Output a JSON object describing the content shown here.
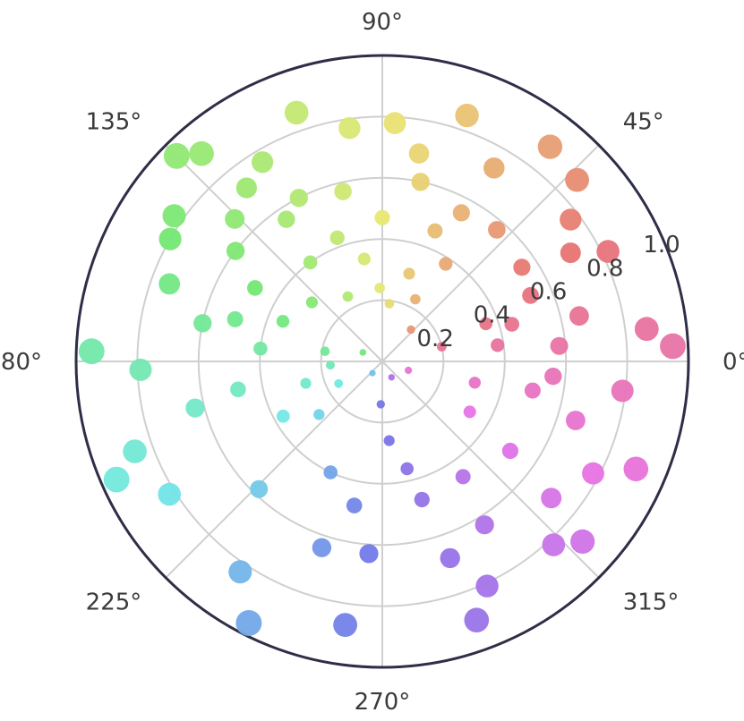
{
  "chart_data": {
    "type": "scatter",
    "coordinate_system": "polar",
    "title": "",
    "theta_unit": "degrees",
    "r_range": [
      0,
      1.0
    ],
    "r_ticks": [
      0.2,
      0.4,
      0.6,
      0.8,
      1.0
    ],
    "r_tick_labels": [
      "0.2",
      "0.4",
      "0.6",
      "0.8",
      "1.0"
    ],
    "theta_ticks": [
      0,
      45,
      90,
      135,
      180,
      225,
      270,
      315
    ],
    "theta_tick_labels": [
      "0°",
      "45°",
      "90°",
      "135°",
      "180°",
      "225°",
      "270°",
      "315°"
    ],
    "grid": true,
    "color_encoding": "hue by angle (hsv)",
    "size_encoding": "marker area grows with radius",
    "points": [
      {
        "theta": 3,
        "r": 0.95
      },
      {
        "theta": 7,
        "r": 0.87
      },
      {
        "theta": 13,
        "r": 0.66
      },
      {
        "theta": 8,
        "r": 0.38
      },
      {
        "theta": 14,
        "r": 0.2
      },
      {
        "theta": 5,
        "r": 0.58
      },
      {
        "theta": 24,
        "r": 0.53
      },
      {
        "theta": 20,
        "r": 0.36
      },
      {
        "theta": 30,
        "r": 0.71
      },
      {
        "theta": 37,
        "r": 0.77
      },
      {
        "theta": 43,
        "r": 0.87
      },
      {
        "theta": 34,
        "r": 0.55
      },
      {
        "theta": 49,
        "r": 0.57
      },
      {
        "theta": 52,
        "r": 0.89
      },
      {
        "theta": 62,
        "r": 0.55
      },
      {
        "theta": 60,
        "r": 0.73
      },
      {
        "theta": 71,
        "r": 0.85
      },
      {
        "theta": 78,
        "r": 0.6
      },
      {
        "theta": 73,
        "r": 0.3
      },
      {
        "theta": 48,
        "r": 0.14
      },
      {
        "theta": 62,
        "r": 0.23
      },
      {
        "theta": 83,
        "r": 0.19
      },
      {
        "theta": 87,
        "r": 0.78
      },
      {
        "theta": 90,
        "r": 0.47
      },
      {
        "theta": 98,
        "r": 0.77
      },
      {
        "theta": 103,
        "r": 0.57
      },
      {
        "theta": 109,
        "r": 0.86
      },
      {
        "theta": 110,
        "r": 0.43
      },
      {
        "theta": 117,
        "r": 0.6
      },
      {
        "theta": 124,
        "r": 0.56
      },
      {
        "theta": 126,
        "r": 0.4
      },
      {
        "theta": 135,
        "r": 0.95
      },
      {
        "theta": 131,
        "r": 0.9
      },
      {
        "theta": 145,
        "r": 0.83
      },
      {
        "theta": 143,
        "r": 0.6
      },
      {
        "theta": 150,
        "r": 0.8
      },
      {
        "theta": 160,
        "r": 0.74
      },
      {
        "theta": 164,
        "r": 0.5
      },
      {
        "theta": 158,
        "r": 0.35
      },
      {
        "theta": 150,
        "r": 0.48
      },
      {
        "theta": 170,
        "r": 0.19
      },
      {
        "theta": 178,
        "r": 0.95
      },
      {
        "theta": 174,
        "r": 0.4
      },
      {
        "theta": 182,
        "r": 0.79
      },
      {
        "theta": 191,
        "r": 0.48
      },
      {
        "theta": 196,
        "r": 0.26
      },
      {
        "theta": 184,
        "r": 0.17
      },
      {
        "theta": 204,
        "r": 0.95
      },
      {
        "theta": 212,
        "r": 0.82
      },
      {
        "theta": 209,
        "r": 0.37
      },
      {
        "theta": 220,
        "r": 0.27
      },
      {
        "theta": 207,
        "r": 0.16
      },
      {
        "theta": 236,
        "r": 0.83
      },
      {
        "theta": 243,
        "r": 0.96
      },
      {
        "theta": 252,
        "r": 0.64
      },
      {
        "theta": 259,
        "r": 0.48
      },
      {
        "theta": 266,
        "r": 0.63
      },
      {
        "theta": 268,
        "r": 0.14
      },
      {
        "theta": 275,
        "r": 0.26
      },
      {
        "theta": 283,
        "r": 0.36
      },
      {
        "theta": 286,
        "r": 0.47
      },
      {
        "theta": 289,
        "r": 0.68
      },
      {
        "theta": 295,
        "r": 0.81
      },
      {
        "theta": 302,
        "r": 0.63
      },
      {
        "theta": 305,
        "r": 0.46
      },
      {
        "theta": 313,
        "r": 0.82
      },
      {
        "theta": 321,
        "r": 0.71
      },
      {
        "theta": 325,
        "r": 0.51
      },
      {
        "theta": 330,
        "r": 0.33
      },
      {
        "theta": 332,
        "r": 0.78
      },
      {
        "theta": 337,
        "r": 0.9
      },
      {
        "theta": 343,
        "r": 0.66
      },
      {
        "theta": 349,
        "r": 0.5
      },
      {
        "theta": 347,
        "r": 0.31
      },
      {
        "theta": 355,
        "r": 0.56
      },
      {
        "theta": 341,
        "r": 0.09
      },
      {
        "theta": 300,
        "r": 0.06
      },
      {
        "theta": 230,
        "r": 0.05
      },
      {
        "theta": 155,
        "r": 0.07
      },
      {
        "theta": 118,
        "r": 0.24
      },
      {
        "theta": 136,
        "r": 0.67
      },
      {
        "theta": 121,
        "r": 0.76
      },
      {
        "theta": 100,
        "r": 0.34
      },
      {
        "theta": 68,
        "r": 0.46
      },
      {
        "theta": 57,
        "r": 0.38
      },
      {
        "theta": 16,
        "r": 0.44
      },
      {
        "theta": 353,
        "r": 0.79
      },
      {
        "theta": 318,
        "r": 0.88
      },
      {
        "theta": 262,
        "r": 0.87
      },
      {
        "theta": 226,
        "r": 0.58
      },
      {
        "theta": 194,
        "r": 0.63
      },
      {
        "theta": 168,
        "r": 0.6
      },
      {
        "theta": 140,
        "r": 0.3
      },
      {
        "theta": 80,
        "r": 0.69
      },
      {
        "theta": 26,
        "r": 0.82
      },
      {
        "theta": 290,
        "r": 0.9
      },
      {
        "theta": 245,
        "r": 0.4
      },
      {
        "theta": 200,
        "r": 0.86
      },
      {
        "theta": 128,
        "r": 0.72
      },
      {
        "theta": 92,
        "r": 0.24
      }
    ]
  }
}
